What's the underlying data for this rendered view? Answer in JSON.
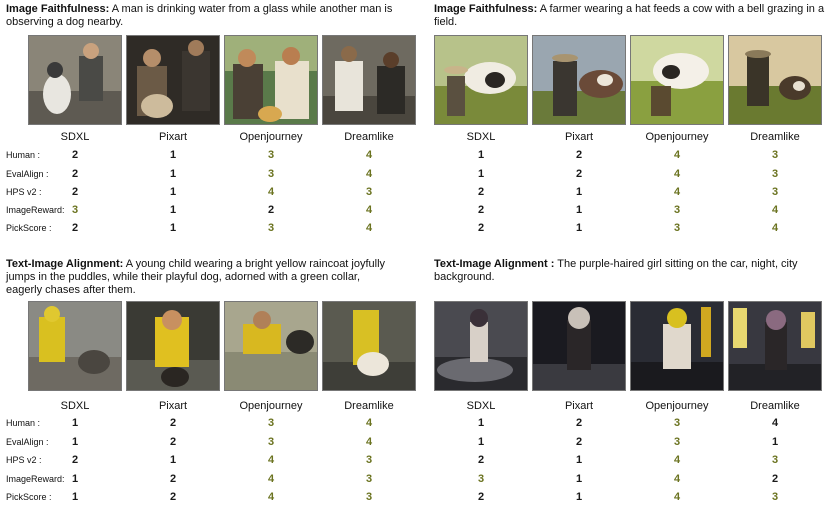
{
  "models": [
    "SDXL",
    "Pixart",
    "Openjourney",
    "Dreamlike"
  ],
  "metrics": [
    "Human :",
    "EvalAlign :",
    "HPS v2 :",
    "ImageReward:",
    "PickScore :"
  ],
  "panels": [
    {
      "heading": "Image Faithfulness:",
      "prompt": " A man is drinking water from a glass while another man is observing a dog nearby.",
      "scores": [
        [
          2,
          1,
          3,
          4
        ],
        [
          2,
          1,
          3,
          4
        ],
        [
          2,
          1,
          4,
          3
        ],
        [
          3,
          1,
          2,
          4
        ],
        [
          2,
          1,
          3,
          4
        ]
      ]
    },
    {
      "heading": "Image Faithfulness:",
      "prompt": " A farmer wearing a hat feeds a cow with a bell grazing in a field.",
      "scores": [
        [
          1,
          2,
          4,
          3
        ],
        [
          1,
          2,
          4,
          3
        ],
        [
          2,
          1,
          4,
          3
        ],
        [
          2,
          1,
          3,
          4
        ],
        [
          2,
          1,
          3,
          4
        ]
      ]
    },
    {
      "heading": "Text-Image Alignment:",
      "prompt": " A young child wearing a bright yellow raincoat joyfully jumps in the puddles, while their playful dog, adorned with a green collar, eagerly chases after them.",
      "scores": [
        [
          1,
          2,
          3,
          4
        ],
        [
          1,
          2,
          3,
          4
        ],
        [
          2,
          1,
          4,
          3
        ],
        [
          1,
          2,
          4,
          3
        ],
        [
          1,
          2,
          4,
          3
        ]
      ]
    },
    {
      "heading": "Text-Image Alignment :",
      "prompt": " The purple-haired girl sitting on the car, night, city background.",
      "scores": [
        [
          1,
          2,
          3,
          4
        ],
        [
          1,
          2,
          3,
          1
        ],
        [
          2,
          1,
          4,
          3
        ],
        [
          3,
          1,
          4,
          2
        ],
        [
          2,
          1,
          4,
          3
        ]
      ]
    }
  ],
  "palette": {
    "rank_dark": "#1a1a1a",
    "rank_olive": "#6b7320"
  }
}
